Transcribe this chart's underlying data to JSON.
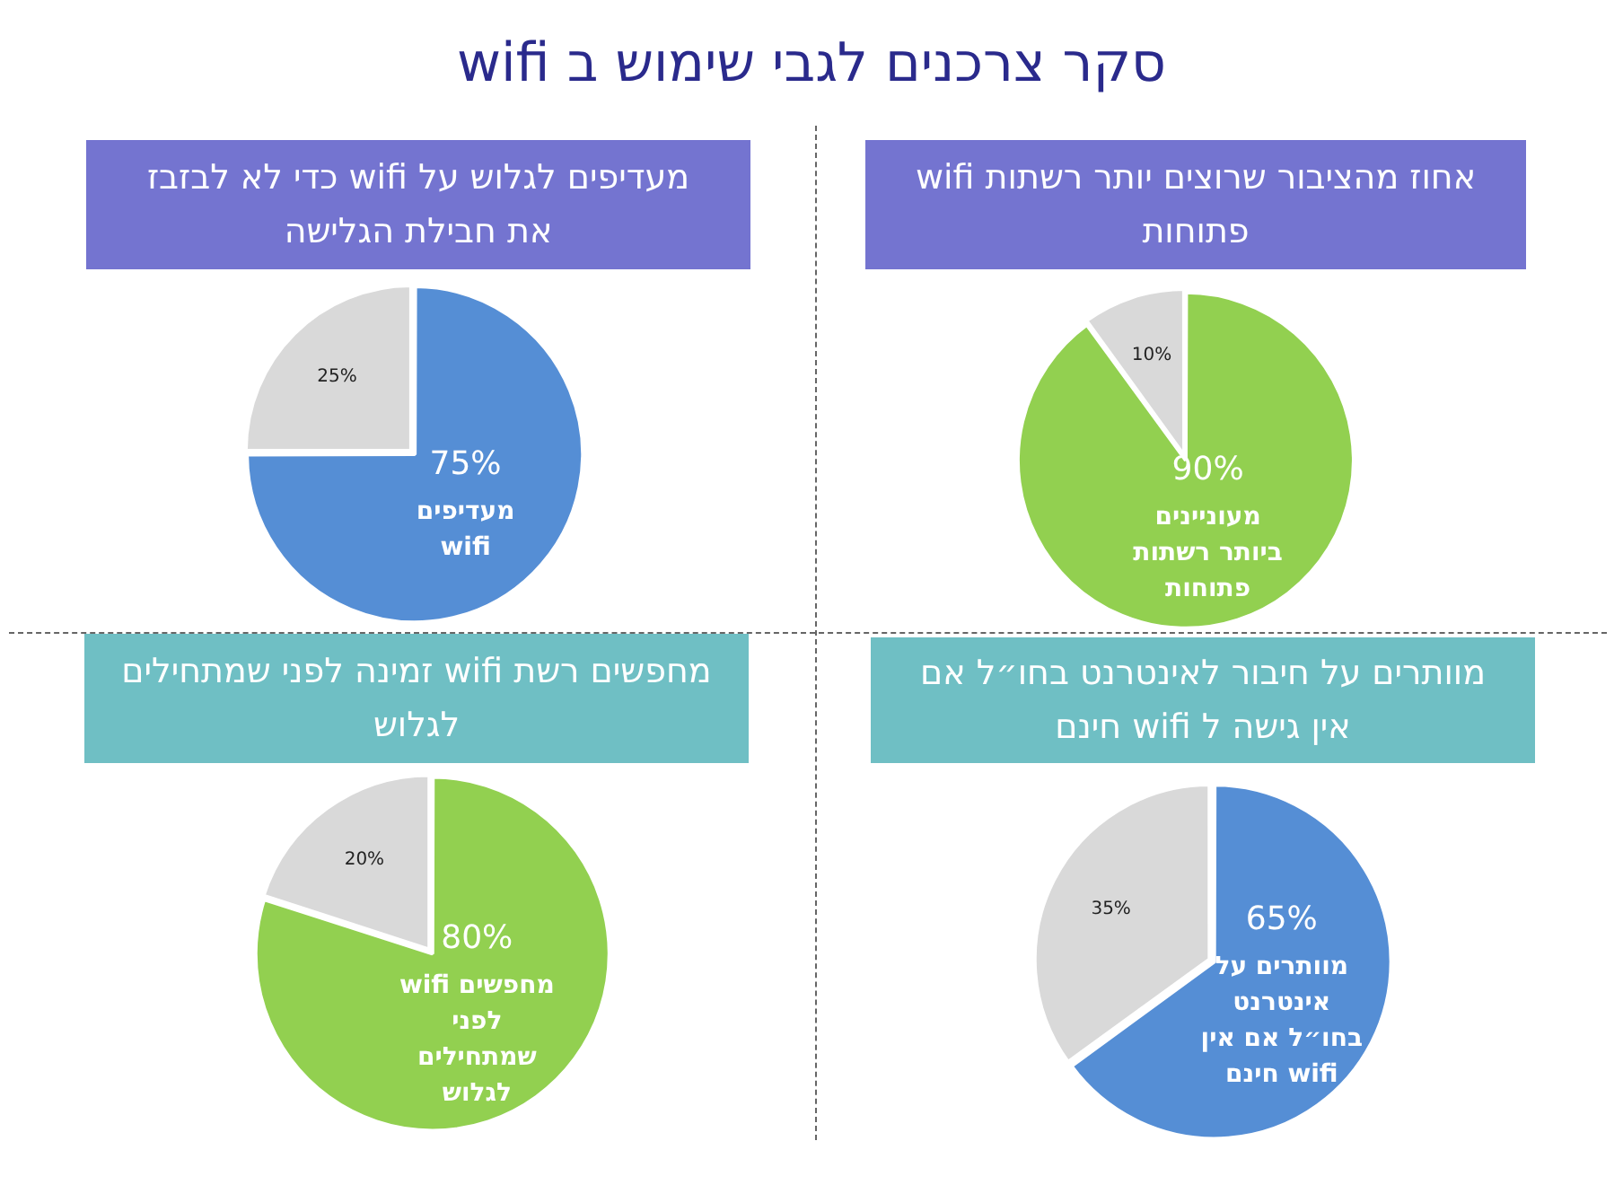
{
  "chart_data": [
    {
      "type": "other",
      "title": "סקר צרכנים לגבי שימוש ב wifi"
    },
    {
      "type": "pie",
      "title": "מעדיפים לגלוש על wifi כדי לא לבזבז את חבילת הגלישה",
      "categories": [
        "מעדיפים wifi",
        null
      ],
      "values": [
        75,
        25
      ],
      "colors": [
        "#558ed5",
        "#d9d9d9"
      ],
      "value_labels": [
        "75%",
        "25%"
      ]
    },
    {
      "type": "pie",
      "title": "אחוז מהציבור שרוצים יותר רשתות wifi פתוחות",
      "categories": [
        "מעוניינים ביותר רשתות פתוחות",
        null
      ],
      "values": [
        90,
        10
      ],
      "colors": [
        "#92d050",
        "#d9d9d9"
      ],
      "value_labels": [
        "90%",
        "10%"
      ]
    },
    {
      "type": "pie",
      "title": "מחפשים רשת wifi זמינה לפני שמתחילים לגלוש",
      "categories": [
        "מחפשים wifi לפני שמתחילים לגלוש",
        null
      ],
      "values": [
        80,
        20
      ],
      "colors": [
        "#92d050",
        "#d9d9d9"
      ],
      "value_labels": [
        "80%",
        "20%"
      ]
    },
    {
      "type": "pie",
      "title": "מוותרים על חיבור לאינטרנט בחו״ל אם אין גישה ל wifi חינם",
      "categories": [
        "מוותרים על אינטרנט בחו״ל אם אין wifi חינם",
        null
      ],
      "values": [
        65,
        35
      ],
      "colors": [
        "#558ed5",
        "#d9d9d9"
      ],
      "value_labels": [
        "65%",
        "35%"
      ]
    }
  ]
}
